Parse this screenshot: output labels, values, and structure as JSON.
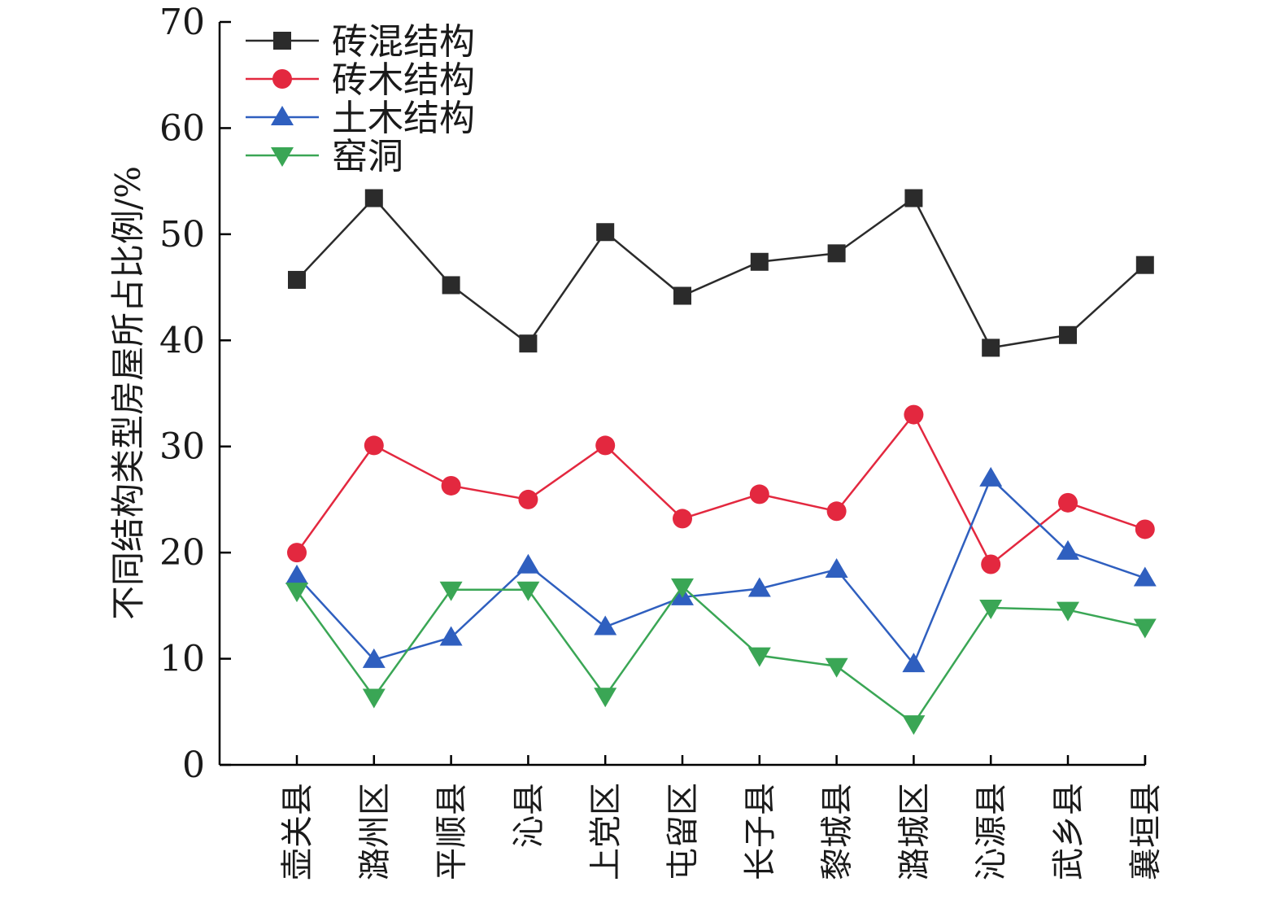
{
  "chart_data": {
    "type": "line",
    "ylabel": "不同结构类型房屋所占比例/%",
    "xlabel": "",
    "ylim": [
      0,
      70
    ],
    "yticks": [
      0,
      10,
      20,
      30,
      40,
      50,
      60,
      70
    ],
    "categories": [
      "壶关县",
      "潞州区",
      "平顺县",
      "沁县",
      "上党区",
      "屯留区",
      "长子县",
      "黎城县",
      "潞城区",
      "沁源县",
      "武乡县",
      "襄垣县"
    ],
    "legend_position": "top-left",
    "grid": false,
    "series": [
      {
        "name": "砖混结构",
        "color": "#2b2b2b",
        "marker": "square",
        "values": [
          45.7,
          53.4,
          45.2,
          39.7,
          50.2,
          44.2,
          47.4,
          48.2,
          53.4,
          39.3,
          40.5,
          47.1
        ]
      },
      {
        "name": "砖木结构",
        "color": "#e3283f",
        "marker": "circle",
        "values": [
          20.0,
          30.1,
          26.3,
          25.0,
          30.1,
          23.2,
          25.5,
          23.9,
          33.0,
          18.9,
          24.7,
          22.2
        ]
      },
      {
        "name": "土木结构",
        "color": "#2f5fbf",
        "marker": "triangle-up",
        "values": [
          17.8,
          9.9,
          12.0,
          18.8,
          13.0,
          15.8,
          16.6,
          18.4,
          9.5,
          27.0,
          20.1,
          17.6
        ]
      },
      {
        "name": "窑洞",
        "color": "#3aa655",
        "marker": "triangle-down",
        "values": [
          16.4,
          6.4,
          16.5,
          16.5,
          6.5,
          16.8,
          10.3,
          9.3,
          3.9,
          14.8,
          14.6,
          13.0
        ]
      }
    ]
  }
}
